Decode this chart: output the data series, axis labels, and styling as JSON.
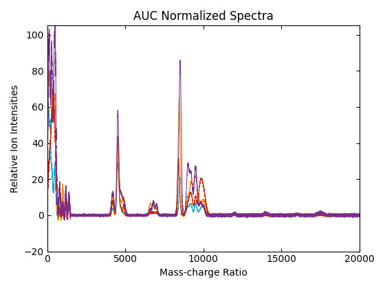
{
  "title": "AUC Normalized Spectra",
  "xlabel": "Mass-charge Ratio",
  "ylabel": "Relative Ion Intensities",
  "xlim": [
    0,
    20000
  ],
  "ylim": [
    -20,
    105
  ],
  "yticks": [
    -20,
    0,
    20,
    40,
    60,
    80,
    100
  ],
  "xticks": [
    0,
    5000,
    10000,
    15000,
    20000
  ],
  "colors": [
    "#7B2D8B",
    "#00AADD",
    "#FF8C00",
    "#CC2200"
  ],
  "linewidth": 0.7,
  "figsize": [
    5.6,
    4.2
  ],
  "dpi": 100
}
